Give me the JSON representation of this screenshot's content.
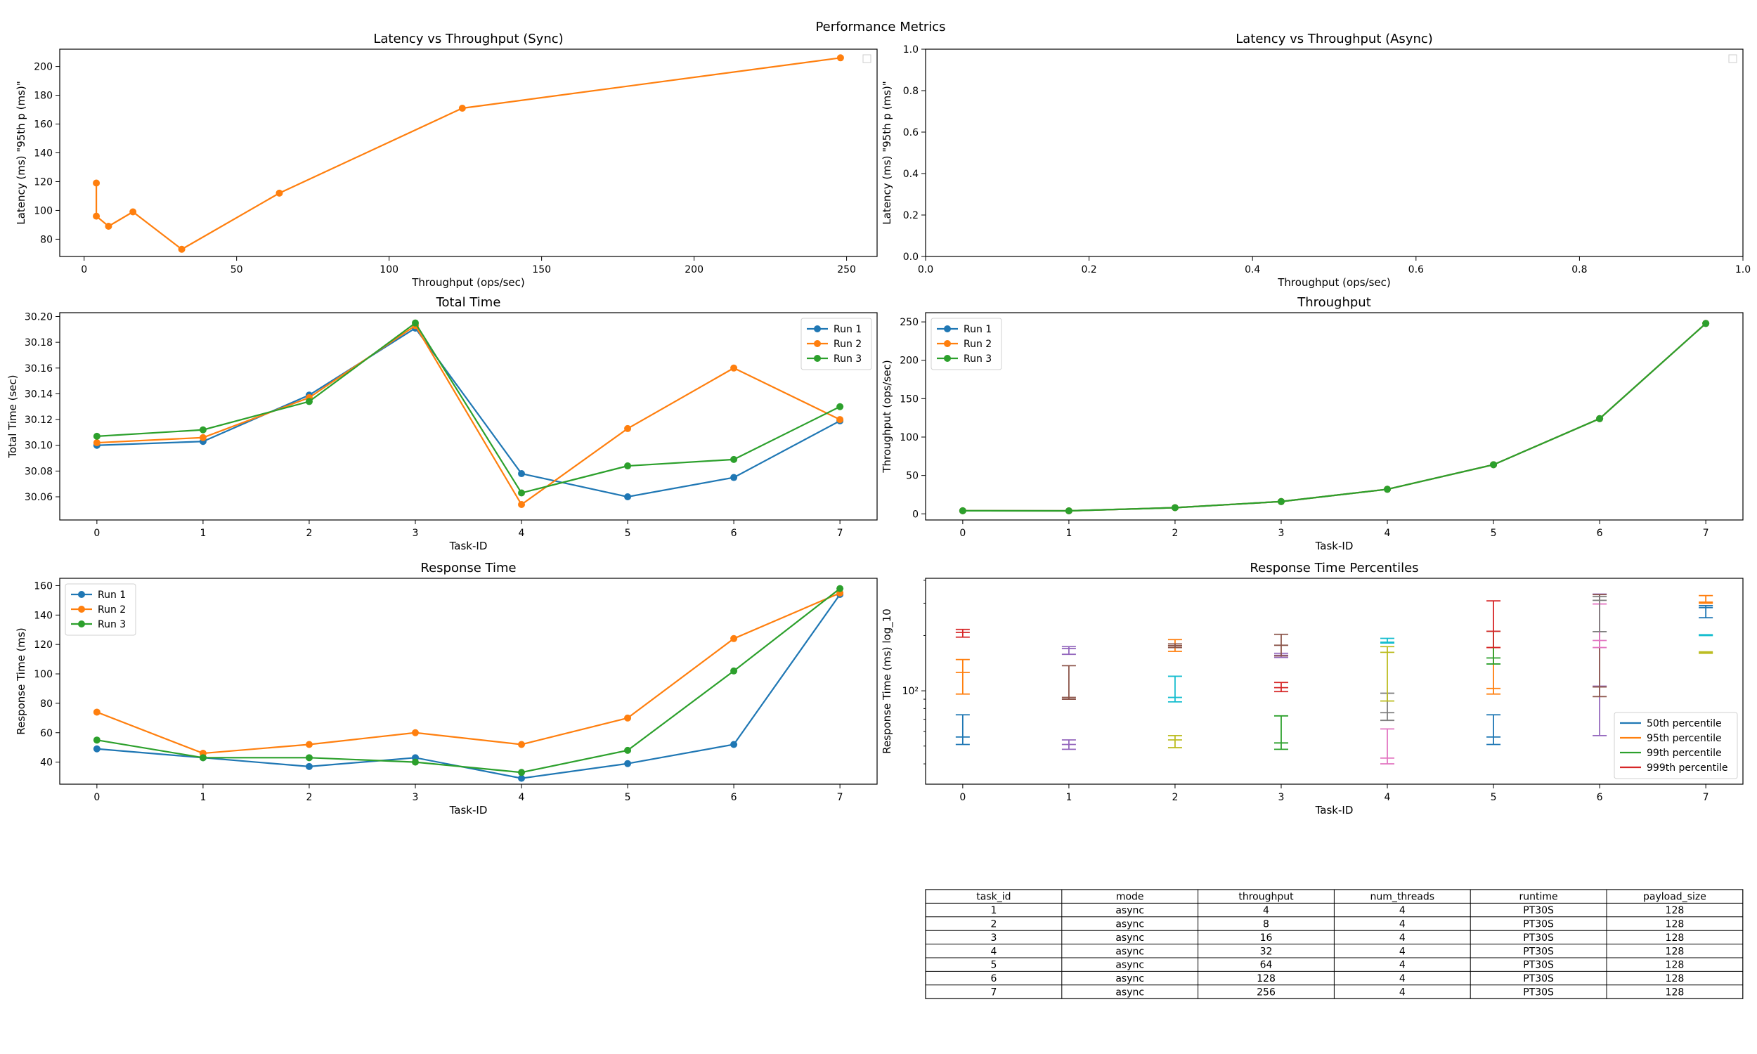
{
  "figure": {
    "title": "Performance Metrics"
  },
  "colors": {
    "run1": "#1f77b4",
    "run2": "#ff7f0e",
    "run3": "#2ca02c",
    "p50": "#1f77b4",
    "p95": "#ff7f0e",
    "p99": "#2ca02c",
    "p999": "#d62728"
  },
  "chart_data": [
    {
      "id": "sync",
      "type": "line",
      "title": "Latency vs Throughput (Sync)",
      "xlabel": "Throughput (ops/sec)",
      "ylabel": "Latency (ms) \"95th p (ms)\"",
      "xlim": [
        -8,
        260
      ],
      "ylim": [
        68,
        212
      ],
      "xticks": [
        0,
        50,
        100,
        150,
        200,
        250
      ],
      "yticks": [
        80,
        100,
        120,
        140,
        160,
        180,
        200
      ],
      "legend": "top-right (empty)",
      "series": [
        {
          "color": "#ff7f0e",
          "x": [
            4,
            4,
            8,
            16,
            32,
            64,
            124,
            248
          ],
          "y": [
            119,
            96,
            89,
            99,
            73,
            112,
            171,
            206
          ]
        }
      ]
    },
    {
      "id": "async",
      "type": "line",
      "title": "Latency vs Throughput (Async)",
      "xlabel": "Throughput (ops/sec)",
      "ylabel": "Latency (ms) \"95th p (ms)\"",
      "xlim": [
        0,
        1
      ],
      "ylim": [
        0,
        1
      ],
      "xticks": [
        0.0,
        0.2,
        0.4,
        0.6,
        0.8,
        1.0
      ],
      "yticks": [
        0.0,
        0.2,
        0.4,
        0.6,
        0.8,
        1.0
      ],
      "tick_format": 1,
      "legend": "top-right (empty)",
      "series": []
    },
    {
      "id": "total",
      "type": "line",
      "title": "Total Time",
      "xlabel": "Task-ID",
      "ylabel": "Total Time (sec)",
      "xlim": [
        -0.35,
        7.35
      ],
      "ylim": [
        30.042,
        30.203
      ],
      "xticks": [
        0,
        1,
        2,
        3,
        4,
        5,
        6,
        7
      ],
      "yticks": [
        30.06,
        30.08,
        30.1,
        30.12,
        30.14,
        30.16,
        30.18,
        30.2
      ],
      "tick_format": 2,
      "legend": "top-right",
      "series": [
        {
          "name": "Run 1",
          "color": "#1f77b4",
          "x": [
            0,
            1,
            2,
            3,
            4,
            5,
            6,
            7
          ],
          "y": [
            30.1,
            30.103,
            30.139,
            30.191,
            30.078,
            30.06,
            30.075,
            30.119
          ]
        },
        {
          "name": "Run 2",
          "color": "#ff7f0e",
          "x": [
            0,
            1,
            2,
            3,
            4,
            5,
            6,
            7
          ],
          "y": [
            30.102,
            30.106,
            30.137,
            30.193,
            30.054,
            30.113,
            30.16,
            30.12
          ]
        },
        {
          "name": "Run 3",
          "color": "#2ca02c",
          "x": [
            0,
            1,
            2,
            3,
            4,
            5,
            6,
            7
          ],
          "y": [
            30.107,
            30.112,
            30.134,
            30.195,
            30.063,
            30.084,
            30.089,
            30.13
          ]
        }
      ]
    },
    {
      "id": "throughput",
      "type": "line",
      "title": "Throughput",
      "xlabel": "Task-ID",
      "ylabel": "Throughput (ops/sec)",
      "xlim": [
        -0.35,
        7.35
      ],
      "ylim": [
        -8,
        262
      ],
      "xticks": [
        0,
        1,
        2,
        3,
        4,
        5,
        6,
        7
      ],
      "yticks": [
        0,
        50,
        100,
        150,
        200,
        250
      ],
      "legend": "top-left",
      "series": [
        {
          "name": "Run 1",
          "color": "#1f77b4",
          "x": [
            0,
            1,
            2,
            3,
            4,
            5,
            6,
            7
          ],
          "y": [
            4,
            3.9,
            8,
            16,
            32,
            64,
            124,
            248
          ]
        },
        {
          "name": "Run 2",
          "color": "#ff7f0e",
          "x": [
            0,
            1,
            2,
            3,
            4,
            5,
            6,
            7
          ],
          "y": [
            4,
            3.9,
            8,
            16,
            32,
            64,
            124,
            248
          ]
        },
        {
          "name": "Run 3",
          "color": "#2ca02c",
          "x": [
            0,
            1,
            2,
            3,
            4,
            5,
            6,
            7
          ],
          "y": [
            4,
            3.9,
            8,
            16,
            32,
            64,
            124,
            248
          ]
        }
      ]
    },
    {
      "id": "response",
      "type": "line",
      "title": "Response Time",
      "xlabel": "Task-ID",
      "ylabel": "Response Time (ms)",
      "xlim": [
        -0.35,
        7.35
      ],
      "ylim": [
        25,
        165
      ],
      "xticks": [
        0,
        1,
        2,
        3,
        4,
        5,
        6,
        7
      ],
      "yticks": [
        40,
        60,
        80,
        100,
        120,
        140,
        160
      ],
      "legend": "top-left",
      "series": [
        {
          "name": "Run 1",
          "color": "#1f77b4",
          "x": [
            0,
            1,
            2,
            3,
            4,
            5,
            6,
            7
          ],
          "y": [
            49,
            43,
            37,
            43,
            29,
            39,
            52,
            154
          ]
        },
        {
          "name": "Run 2",
          "color": "#ff7f0e",
          "x": [
            0,
            1,
            2,
            3,
            4,
            5,
            6,
            7
          ],
          "y": [
            74,
            46,
            52,
            60,
            52,
            70,
            124,
            155
          ]
        },
        {
          "name": "Run 3",
          "color": "#2ca02c",
          "x": [
            0,
            1,
            2,
            3,
            4,
            5,
            6,
            7
          ],
          "y": [
            55,
            43,
            43,
            40,
            33,
            48,
            102,
            158
          ]
        }
      ]
    },
    {
      "id": "percentiles",
      "type": "errorbar",
      "title": "Response Time Percentiles",
      "xlabel": "Task-ID",
      "ylabel": "Response Time (ms) log_10",
      "scale_y": "log",
      "xlim": [
        -0.35,
        7.35
      ],
      "ylim": [
        31,
        410
      ],
      "xticks": [
        0,
        1,
        2,
        3,
        4,
        5,
        6,
        7
      ],
      "ytick_label": "10²",
      "ytick_value": 100,
      "legend": "bottom-right",
      "legend_entries": [
        {
          "name": "50th percentile",
          "color": "#1f77b4"
        },
        {
          "name": "95th percentile",
          "color": "#ff7f0e"
        },
        {
          "name": "99th percentile",
          "color": "#2ca02c"
        },
        {
          "name": "999th percentile",
          "color": "#d62728"
        }
      ],
      "bars": [
        {
          "x": 0,
          "color": "#1f77b4",
          "lo": 51,
          "hi": 74,
          "mid": 56
        },
        {
          "x": 0,
          "color": "#ff7f0e",
          "lo": 96,
          "hi": 148,
          "mid": 126
        },
        {
          "x": 0,
          "color": "#d62728",
          "lo": 196,
          "hi": 216,
          "mid": 208
        },
        {
          "x": 1,
          "color": "#9467bd",
          "lo": 48,
          "hi": 54,
          "mid": 51
        },
        {
          "x": 1,
          "color": "#8c564b",
          "lo": 90,
          "hi": 137,
          "mid": 92
        },
        {
          "x": 1,
          "color": "#9467bd",
          "lo": 158,
          "hi": 174,
          "mid": 170
        },
        {
          "x": 2,
          "color": "#bcbd22",
          "lo": 49,
          "hi": 57,
          "mid": 54
        },
        {
          "x": 2,
          "color": "#17becf",
          "lo": 87,
          "hi": 120,
          "mid": 92
        },
        {
          "x": 2,
          "color": "#ff7f0e",
          "lo": 164,
          "hi": 190,
          "mid": 176
        },
        {
          "x": 2,
          "color": "#8c564b",
          "lo": 172,
          "hi": 180,
          "mid": 176
        },
        {
          "x": 3,
          "color": "#2ca02c",
          "lo": 48,
          "hi": 73,
          "mid": 52
        },
        {
          "x": 3,
          "color": "#d62728",
          "lo": 99,
          "hi": 111,
          "mid": 104
        },
        {
          "x": 3,
          "color": "#9467bd",
          "lo": 152,
          "hi": 160,
          "mid": 156
        },
        {
          "x": 3,
          "color": "#8c564b",
          "lo": 155,
          "hi": 203,
          "mid": 177
        },
        {
          "x": 4,
          "color": "#e377c2",
          "lo": 40,
          "hi": 62,
          "mid": 43
        },
        {
          "x": 4,
          "color": "#7f7f7f",
          "lo": 69,
          "hi": 97,
          "mid": 76
        },
        {
          "x": 4,
          "color": "#bcbd22",
          "lo": 88,
          "hi": 174,
          "mid": 162
        },
        {
          "x": 4,
          "color": "#17becf",
          "lo": 182,
          "hi": 193,
          "mid": 184
        },
        {
          "x": 5,
          "color": "#1f77b4",
          "lo": 51,
          "hi": 74,
          "mid": 56
        },
        {
          "x": 5,
          "color": "#ff7f0e",
          "lo": 96,
          "hi": 172,
          "mid": 103
        },
        {
          "x": 5,
          "color": "#2ca02c",
          "lo": 140,
          "hi": 211,
          "mid": 151
        },
        {
          "x": 5,
          "color": "#d62728",
          "lo": 172,
          "hi": 309,
          "mid": 211
        },
        {
          "x": 6,
          "color": "#9467bd",
          "lo": 57,
          "hi": 336,
          "mid": 106
        },
        {
          "x": 6,
          "color": "#8c564b",
          "lo": 93,
          "hi": 334,
          "mid": 105
        },
        {
          "x": 6,
          "color": "#e377c2",
          "lo": 172,
          "hi": 297,
          "mid": 188
        },
        {
          "x": 6,
          "color": "#7f7f7f",
          "lo": 210,
          "hi": 326,
          "mid": 311
        },
        {
          "x": 7,
          "color": "#1f77b4",
          "lo": 250,
          "hi": 291,
          "mid": 284
        },
        {
          "x": 7,
          "color": "#ff7f0e",
          "lo": 300,
          "hi": 330,
          "mid": 304
        },
        {
          "x": 7,
          "color": "#17becf",
          "lo": 200,
          "hi": 202,
          "mid": 201
        },
        {
          "x": 7,
          "color": "#bcbd22",
          "lo": 160,
          "hi": 163,
          "mid": 161
        }
      ]
    },
    {
      "id": "table",
      "type": "table",
      "columns": [
        "task_id",
        "mode",
        "throughput",
        "num_threads",
        "runtime",
        "payload_size"
      ],
      "rows": [
        [
          "1",
          "async",
          "4",
          "4",
          "PT30S",
          "128"
        ],
        [
          "2",
          "async",
          "8",
          "4",
          "PT30S",
          "128"
        ],
        [
          "3",
          "async",
          "16",
          "4",
          "PT30S",
          "128"
        ],
        [
          "4",
          "async",
          "32",
          "4",
          "PT30S",
          "128"
        ],
        [
          "5",
          "async",
          "64",
          "4",
          "PT30S",
          "128"
        ],
        [
          "6",
          "async",
          "128",
          "4",
          "PT30S",
          "128"
        ],
        [
          "7",
          "async",
          "256",
          "4",
          "PT30S",
          "128"
        ]
      ]
    }
  ]
}
